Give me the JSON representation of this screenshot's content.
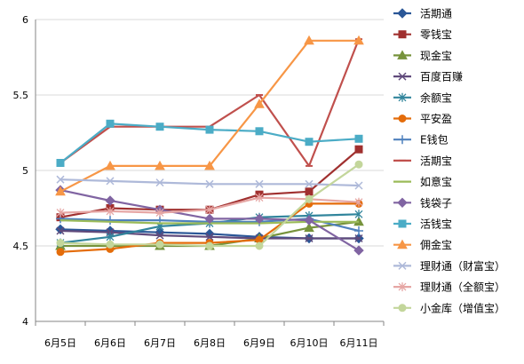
{
  "chart_data": {
    "type": "line",
    "title": "",
    "xlabel": "",
    "ylabel": "",
    "ylim": [
      4,
      6
    ],
    "yticks": [
      "4",
      "4.5",
      "5",
      "5.5",
      "6"
    ],
    "categories": [
      "6月5日",
      "6月6日",
      "6月7日",
      "6月8日",
      "6月9日",
      "6月10日",
      "6月11日"
    ],
    "grid": "horizontal",
    "legend_position": "right",
    "series": [
      {
        "name": "活期通",
        "color": "#2b5797",
        "marker": "diamond",
        "values": [
          4.61,
          4.6,
          4.59,
          4.58,
          4.56,
          4.55,
          4.55
        ]
      },
      {
        "name": "零钱宝",
        "color": "#a0302f",
        "marker": "square",
        "values": [
          4.69,
          4.75,
          4.74,
          4.74,
          4.84,
          4.86,
          5.14
        ]
      },
      {
        "name": "现金宝",
        "color": "#77933c",
        "marker": "triangle",
        "values": [
          4.5,
          4.5,
          4.5,
          4.5,
          4.55,
          4.62,
          4.66
        ]
      },
      {
        "name": "百度百赚",
        "color": "#604a7b",
        "marker": "x",
        "values": [
          4.6,
          4.59,
          4.57,
          4.56,
          4.55,
          4.55,
          4.55
        ]
      },
      {
        "name": "余额宝",
        "color": "#31859c",
        "marker": "star",
        "values": [
          4.52,
          4.56,
          4.63,
          4.65,
          4.69,
          4.7,
          4.71
        ]
      },
      {
        "name": "平安盈",
        "color": "#e46c0a",
        "marker": "circle",
        "values": [
          4.46,
          4.48,
          4.52,
          4.52,
          4.54,
          4.78,
          4.78
        ]
      },
      {
        "name": "E钱包",
        "color": "#4f81bd",
        "marker": "plus",
        "values": [
          4.68,
          4.67,
          4.67,
          4.66,
          4.66,
          4.68,
          4.6
        ]
      },
      {
        "name": "活期宝",
        "color": "#c0504d",
        "marker": "dash",
        "values": [
          5.05,
          5.29,
          5.29,
          5.29,
          5.5,
          5.03,
          5.87
        ]
      },
      {
        "name": "如意宝",
        "color": "#9bbb59",
        "marker": "none",
        "values": [
          4.67,
          4.66,
          4.65,
          4.65,
          4.65,
          4.66,
          4.66
        ]
      },
      {
        "name": "钱袋子",
        "color": "#8064a2",
        "marker": "diamond",
        "values": [
          4.87,
          4.8,
          4.74,
          4.68,
          4.68,
          4.67,
          4.47
        ]
      },
      {
        "name": "活钱宝",
        "color": "#4bacc6",
        "marker": "square",
        "values": [
          5.05,
          5.31,
          5.29,
          5.27,
          5.26,
          5.19,
          5.21
        ]
      },
      {
        "name": "佣金宝",
        "color": "#f79646",
        "marker": "triangle",
        "values": [
          4.86,
          5.03,
          5.03,
          5.03,
          5.44,
          5.86,
          5.86
        ]
      },
      {
        "name": "理财通（财富宝）",
        "color": "#aeb9d9",
        "marker": "x",
        "values": [
          4.94,
          4.93,
          4.92,
          4.91,
          4.91,
          4.91,
          4.9
        ]
      },
      {
        "name": "理财通（全额宝）",
        "color": "#e6a6a4",
        "marker": "star",
        "values": [
          4.72,
          4.73,
          4.72,
          4.74,
          4.82,
          4.81,
          4.79
        ]
      },
      {
        "name": "小金库（增值宝）",
        "color": "#c3d69b",
        "marker": "circle",
        "values": [
          4.52,
          4.51,
          4.51,
          4.5,
          4.5,
          4.81,
          5.04
        ]
      }
    ]
  }
}
